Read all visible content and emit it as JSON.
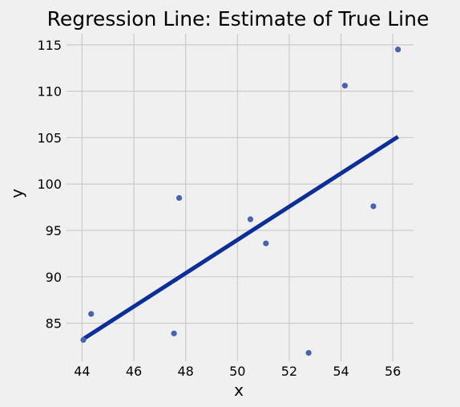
{
  "chart_data": {
    "type": "scatter",
    "title": "Regression Line: Estimate of True Line",
    "xlabel": "x",
    "ylabel": "y",
    "xlim": [
      43.4,
      56.8
    ],
    "ylim": [
      80.9,
      116.2
    ],
    "xticks": [
      44,
      46,
      48,
      50,
      52,
      54,
      56
    ],
    "yticks": [
      85,
      90,
      95,
      100,
      105,
      110,
      115
    ],
    "grid": true,
    "points": [
      {
        "x": 44.05,
        "y": 83.2
      },
      {
        "x": 44.35,
        "y": 86.0
      },
      {
        "x": 47.55,
        "y": 83.9
      },
      {
        "x": 47.75,
        "y": 98.5
      },
      {
        "x": 50.5,
        "y": 96.2
      },
      {
        "x": 51.1,
        "y": 93.6
      },
      {
        "x": 52.75,
        "y": 81.8
      },
      {
        "x": 54.15,
        "y": 110.6
      },
      {
        "x": 55.25,
        "y": 97.6
      },
      {
        "x": 56.2,
        "y": 114.5
      }
    ],
    "regression_line": {
      "x": [
        44.05,
        56.2
      ],
      "y": [
        83.3,
        105.1
      ]
    },
    "colors": {
      "points": "#4a63b0",
      "line": "#0b2f9a",
      "background": "#f0f0f0",
      "grid": "#cbcbcb"
    }
  }
}
